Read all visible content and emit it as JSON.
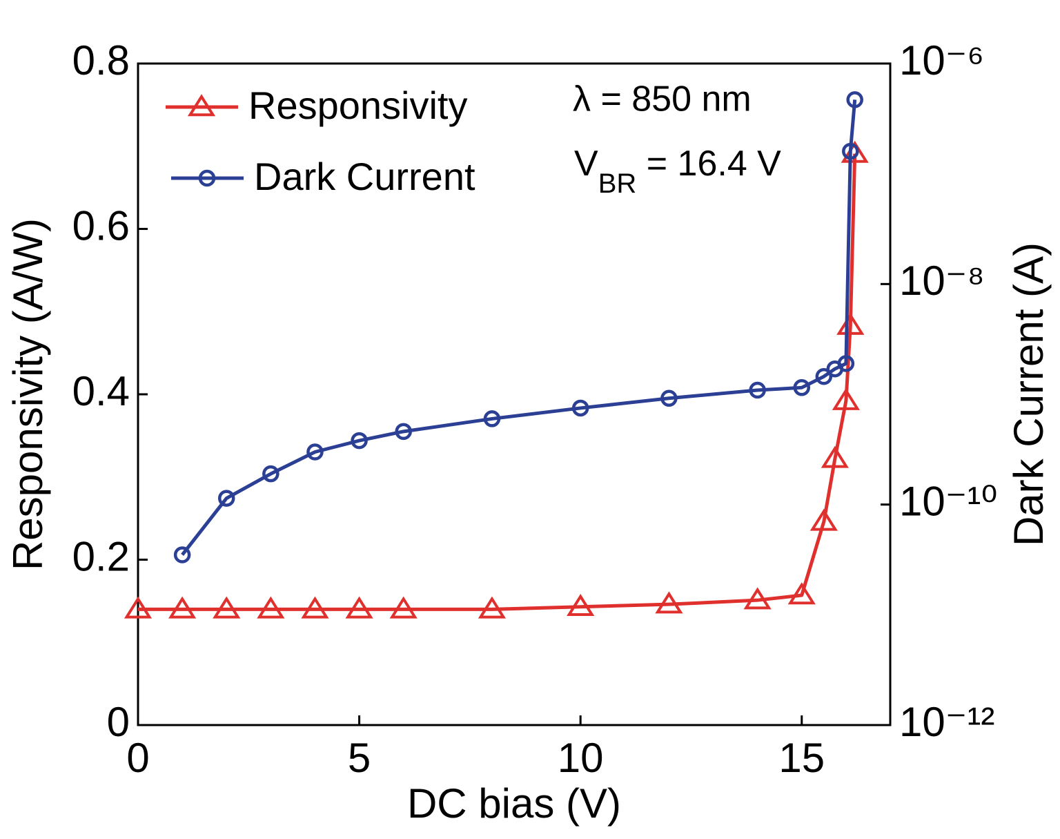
{
  "chart_data": {
    "type": "line",
    "xlabel": "DC bias (V)",
    "ylabel": "Responsivity (A/W)",
    "y2label": "Dark Current (A)",
    "annotation_1": "λ = 850 nm",
    "annotation_2": {
      "main": "V",
      "subscript": "BR",
      "rest": " = 16.4 V"
    },
    "xlim": [
      0,
      17
    ],
    "xticks": [
      0,
      5,
      10,
      15
    ],
    "ylim": [
      0,
      0.8
    ],
    "yticks": [
      0,
      0.2,
      0.4,
      0.6,
      0.8
    ],
    "y2lim": [
      1e-12,
      1e-06
    ],
    "y2scale": "log",
    "y2ticks": [
      {
        "value": 1e-12,
        "label": "10⁻¹²"
      },
      {
        "value": 1e-10,
        "label": "10⁻¹⁰"
      },
      {
        "value": 1e-08,
        "label": "10⁻⁸"
      },
      {
        "value": 1e-06,
        "label": "10⁻⁶"
      }
    ],
    "legend_position": "upper left",
    "series": [
      {
        "name": "Responsivity",
        "color": "#e0302e",
        "marker": "triangle",
        "axis": "y",
        "x": [
          0,
          1,
          2,
          3,
          4,
          5,
          6,
          8,
          10,
          12,
          14,
          15,
          15.5,
          15.75,
          16,
          16.1,
          16.2
        ],
        "values": [
          0.14,
          0.14,
          0.14,
          0.14,
          0.14,
          0.14,
          0.14,
          0.14,
          0.143,
          0.146,
          0.151,
          0.157,
          0.246,
          0.322,
          0.392,
          0.483,
          0.691
        ]
      },
      {
        "name": "Dark Current",
        "color": "#2b3f94",
        "marker": "circle",
        "axis": "y2",
        "x": [
          1,
          2,
          3,
          4,
          5,
          6,
          8,
          10,
          12,
          14,
          15,
          15.5,
          15.75,
          16,
          16.1,
          16.2
        ],
        "values": [
          3.5e-11,
          1.14e-10,
          1.9e-10,
          3e-10,
          3.8e-10,
          4.6e-10,
          6e-10,
          7.5e-10,
          9.2e-10,
          1.09e-09,
          1.15e-09,
          1.45e-09,
          1.7e-09,
          1.9e-09,
          1.6e-07,
          4.7e-07
        ]
      }
    ]
  }
}
